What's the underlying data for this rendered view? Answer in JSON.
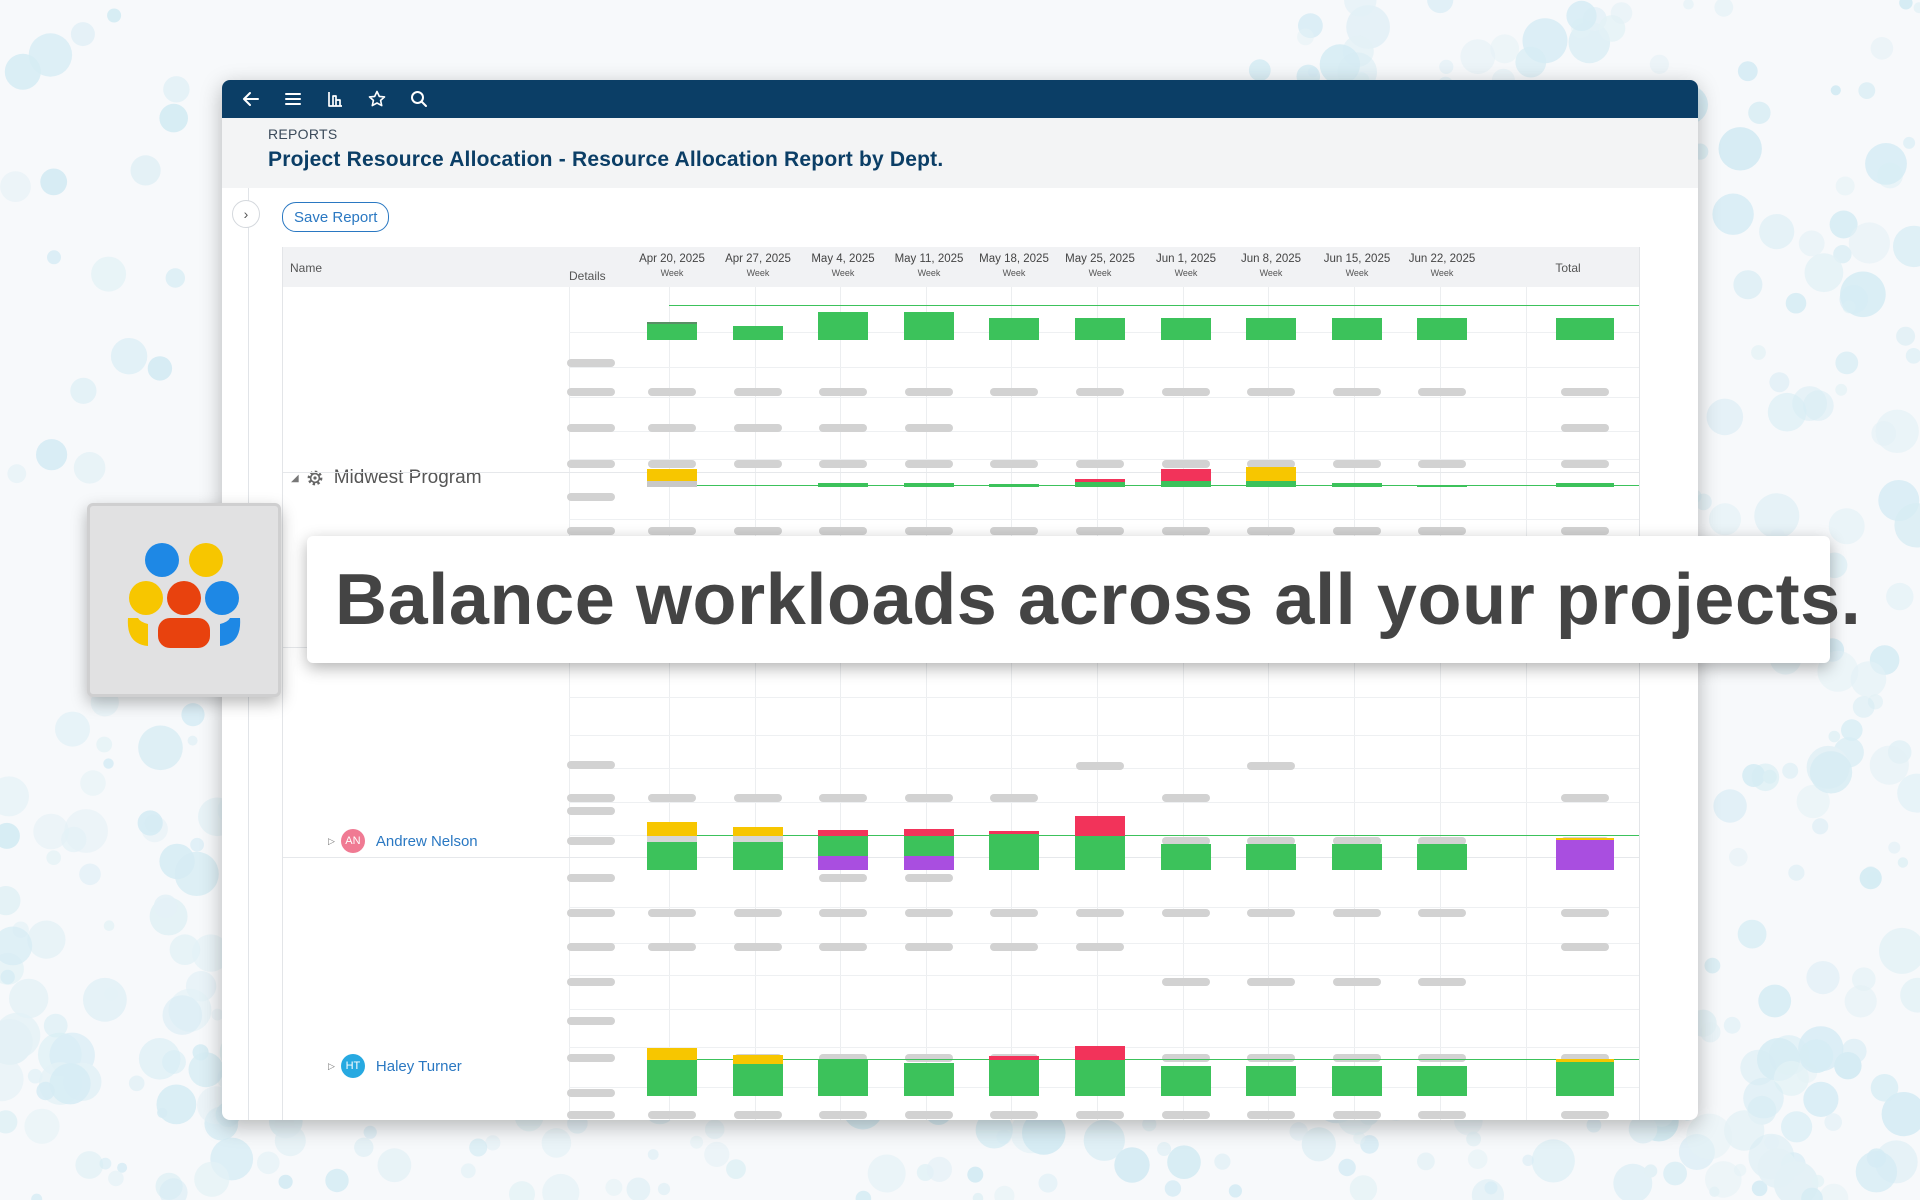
{
  "topbar": {
    "icons": [
      "back-arrow-icon",
      "menu-icon",
      "reports-icon",
      "star-icon",
      "search-icon"
    ]
  },
  "header": {
    "section": "REPORTS",
    "title": "Project Resource Allocation - Resource Allocation Report by Dept."
  },
  "toolbar": {
    "save_label": "Save Report"
  },
  "grid": {
    "col_name": "Name",
    "col_details": "Details",
    "week_sub": "Week",
    "total_label": "Total",
    "weeks": [
      "Apr 20, 2025",
      "Apr 27, 2025",
      "May 4, 2025",
      "May 11, 2025",
      "May 18, 2025",
      "May 25, 2025",
      "Jun 1, 2025",
      "Jun 8, 2025",
      "Jun 15, 2025",
      "Jun 22, 2025"
    ]
  },
  "group": {
    "name": "Midwest Program",
    "icon": "gear-icon"
  },
  "people": [
    {
      "name": "Andrew Nelson",
      "initials": "AN",
      "avatar_color": "#f07a93"
    },
    {
      "name": "Haley Turner",
      "initials": "HT",
      "avatar_color": "#27a9e1"
    }
  ],
  "colors": {
    "topbar": "#0b3e66",
    "available": "#3cc25b",
    "overallocated": "#f2335a",
    "tentative": "#f7c600",
    "other": "#a94ee0",
    "link": "#2a78c2"
  },
  "banner": {
    "text": "Balance workloads across all your projects."
  }
}
